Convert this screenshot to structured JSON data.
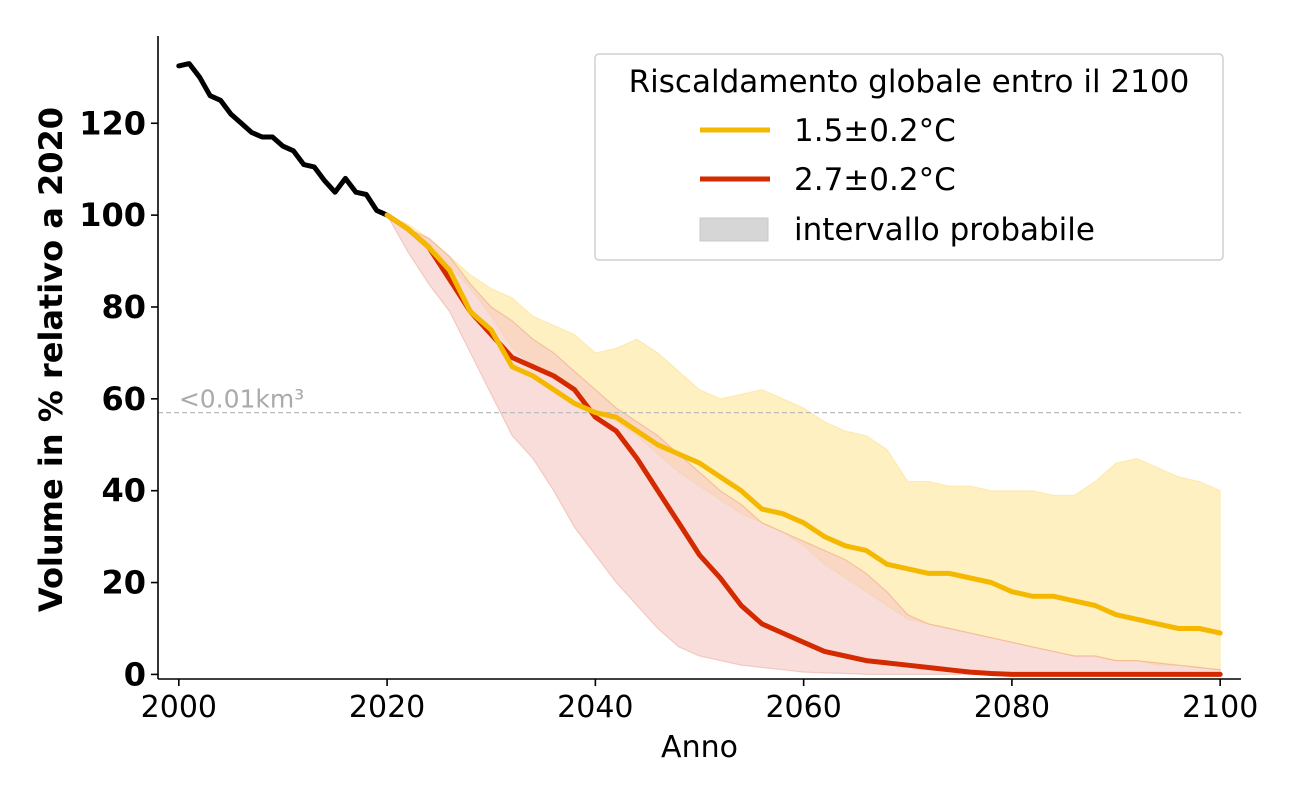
{
  "chart_data": {
    "type": "line",
    "xlabel": "Anno",
    "ylabel": "Volume in % relativo a 2020",
    "xlim": [
      1998,
      2102
    ],
    "ylim": [
      -1,
      139
    ],
    "x_ticks": [
      2000,
      2020,
      2040,
      2060,
      2080,
      2100
    ],
    "y_ticks": [
      0,
      20,
      40,
      60,
      80,
      100,
      120
    ],
    "grid": false,
    "legend": {
      "title": "Riscaldamento globale entro il 2100",
      "placement": "top-right",
      "entries": [
        {
          "label": "1.5±0.2°C",
          "kind": "line",
          "color": "#f5b800"
        },
        {
          "label": "2.7±0.2°C",
          "kind": "line",
          "color": "#d42a00"
        },
        {
          "label": "intervallo probabile",
          "kind": "patch",
          "color": "#d6d6d6"
        }
      ]
    },
    "reference_line": {
      "y": 57,
      "label": "<0.01km³",
      "color": "#bbbbbb"
    },
    "historical": {
      "color": "#000000",
      "x": [
        2000,
        2001,
        2002,
        2003,
        2004,
        2005,
        2006,
        2007,
        2008,
        2009,
        2010,
        2011,
        2012,
        2013,
        2014,
        2015,
        2016,
        2017,
        2018,
        2019,
        2020
      ],
      "y": [
        132.5,
        133,
        130,
        126,
        125,
        122,
        120,
        118,
        117,
        117,
        115,
        114,
        111,
        110.5,
        107.5,
        105,
        108,
        105,
        104.5,
        101,
        100
      ]
    },
    "series": [
      {
        "name": "1.5±0.2°C",
        "color": "#f5b800",
        "band_color": "#ffe9a8",
        "x": [
          2020,
          2022,
          2024,
          2026,
          2028,
          2030,
          2032,
          2034,
          2036,
          2038,
          2040,
          2042,
          2044,
          2046,
          2048,
          2050,
          2052,
          2054,
          2056,
          2058,
          2060,
          2062,
          2064,
          2066,
          2068,
          2070,
          2072,
          2074,
          2076,
          2078,
          2080,
          2082,
          2084,
          2086,
          2088,
          2090,
          2092,
          2094,
          2096,
          2098,
          2100
        ],
        "y": [
          100,
          97,
          93,
          88,
          79,
          75,
          67,
          65,
          62,
          59,
          57,
          56,
          53,
          50,
          48,
          46,
          43,
          40,
          36,
          35,
          33,
          30,
          28,
          27,
          24,
          23,
          22,
          22,
          21,
          20,
          18,
          17,
          17,
          16,
          15,
          13,
          12,
          11,
          10,
          10,
          9
        ],
        "band_lower": [
          100,
          97,
          94,
          89,
          84,
          78,
          71,
          67,
          65,
          62,
          57,
          55,
          52,
          48,
          44,
          41,
          38,
          35,
          33,
          31,
          28,
          24,
          21,
          18,
          15,
          12,
          11,
          10,
          9,
          8,
          7,
          6,
          5,
          4,
          4,
          3,
          3,
          2,
          2,
          1.5,
          1
        ],
        "band_upper": [
          100,
          98,
          95,
          91,
          87,
          84,
          82,
          78,
          76,
          74,
          70,
          71,
          73,
          70,
          66,
          62,
          60,
          61,
          62,
          60,
          58,
          55,
          53,
          52,
          49,
          42,
          42,
          41,
          41,
          40,
          40,
          40,
          39,
          39,
          42,
          46,
          47,
          45,
          43,
          42,
          40
        ]
      },
      {
        "name": "2.7±0.2°C",
        "color": "#d42a00",
        "band_color": "#f5c7c2",
        "x": [
          2020,
          2022,
          2024,
          2026,
          2028,
          2030,
          2032,
          2034,
          2036,
          2038,
          2040,
          2042,
          2044,
          2046,
          2048,
          2050,
          2052,
          2054,
          2056,
          2058,
          2060,
          2062,
          2064,
          2066,
          2068,
          2070,
          2072,
          2074,
          2076,
          2078,
          2080,
          2082,
          2084,
          2086,
          2088,
          2090,
          2092,
          2094,
          2096,
          2098,
          2100
        ],
        "y": [
          100,
          97,
          93,
          86,
          79,
          74,
          69,
          67,
          65,
          62,
          56,
          53,
          47,
          40,
          33,
          26,
          21,
          15,
          11,
          9,
          7,
          5,
          4,
          3,
          2.5,
          2,
          1.5,
          1,
          0.5,
          0.2,
          0,
          0,
          0,
          0,
          0,
          0,
          0,
          0,
          0,
          0,
          0
        ],
        "band_lower": [
          100,
          92,
          85,
          79,
          70,
          61,
          52,
          47,
          40,
          32,
          26,
          20,
          15,
          10,
          6,
          4,
          3,
          2,
          1.5,
          1,
          0.5,
          0.3,
          0.2,
          0,
          0,
          0,
          0,
          0,
          0,
          0,
          0,
          0,
          0,
          0,
          0,
          0,
          0,
          0,
          0,
          0,
          0
        ],
        "band_upper": [
          100,
          97,
          95,
          91,
          85,
          80,
          77,
          73,
          70,
          66,
          62,
          58,
          55,
          52,
          48,
          44,
          40,
          37,
          33,
          31,
          29,
          27,
          25,
          22,
          18,
          13,
          11,
          10,
          9,
          8,
          7,
          6,
          5,
          4,
          4,
          3,
          3,
          2.5,
          2,
          1.5,
          1
        ]
      }
    ]
  }
}
